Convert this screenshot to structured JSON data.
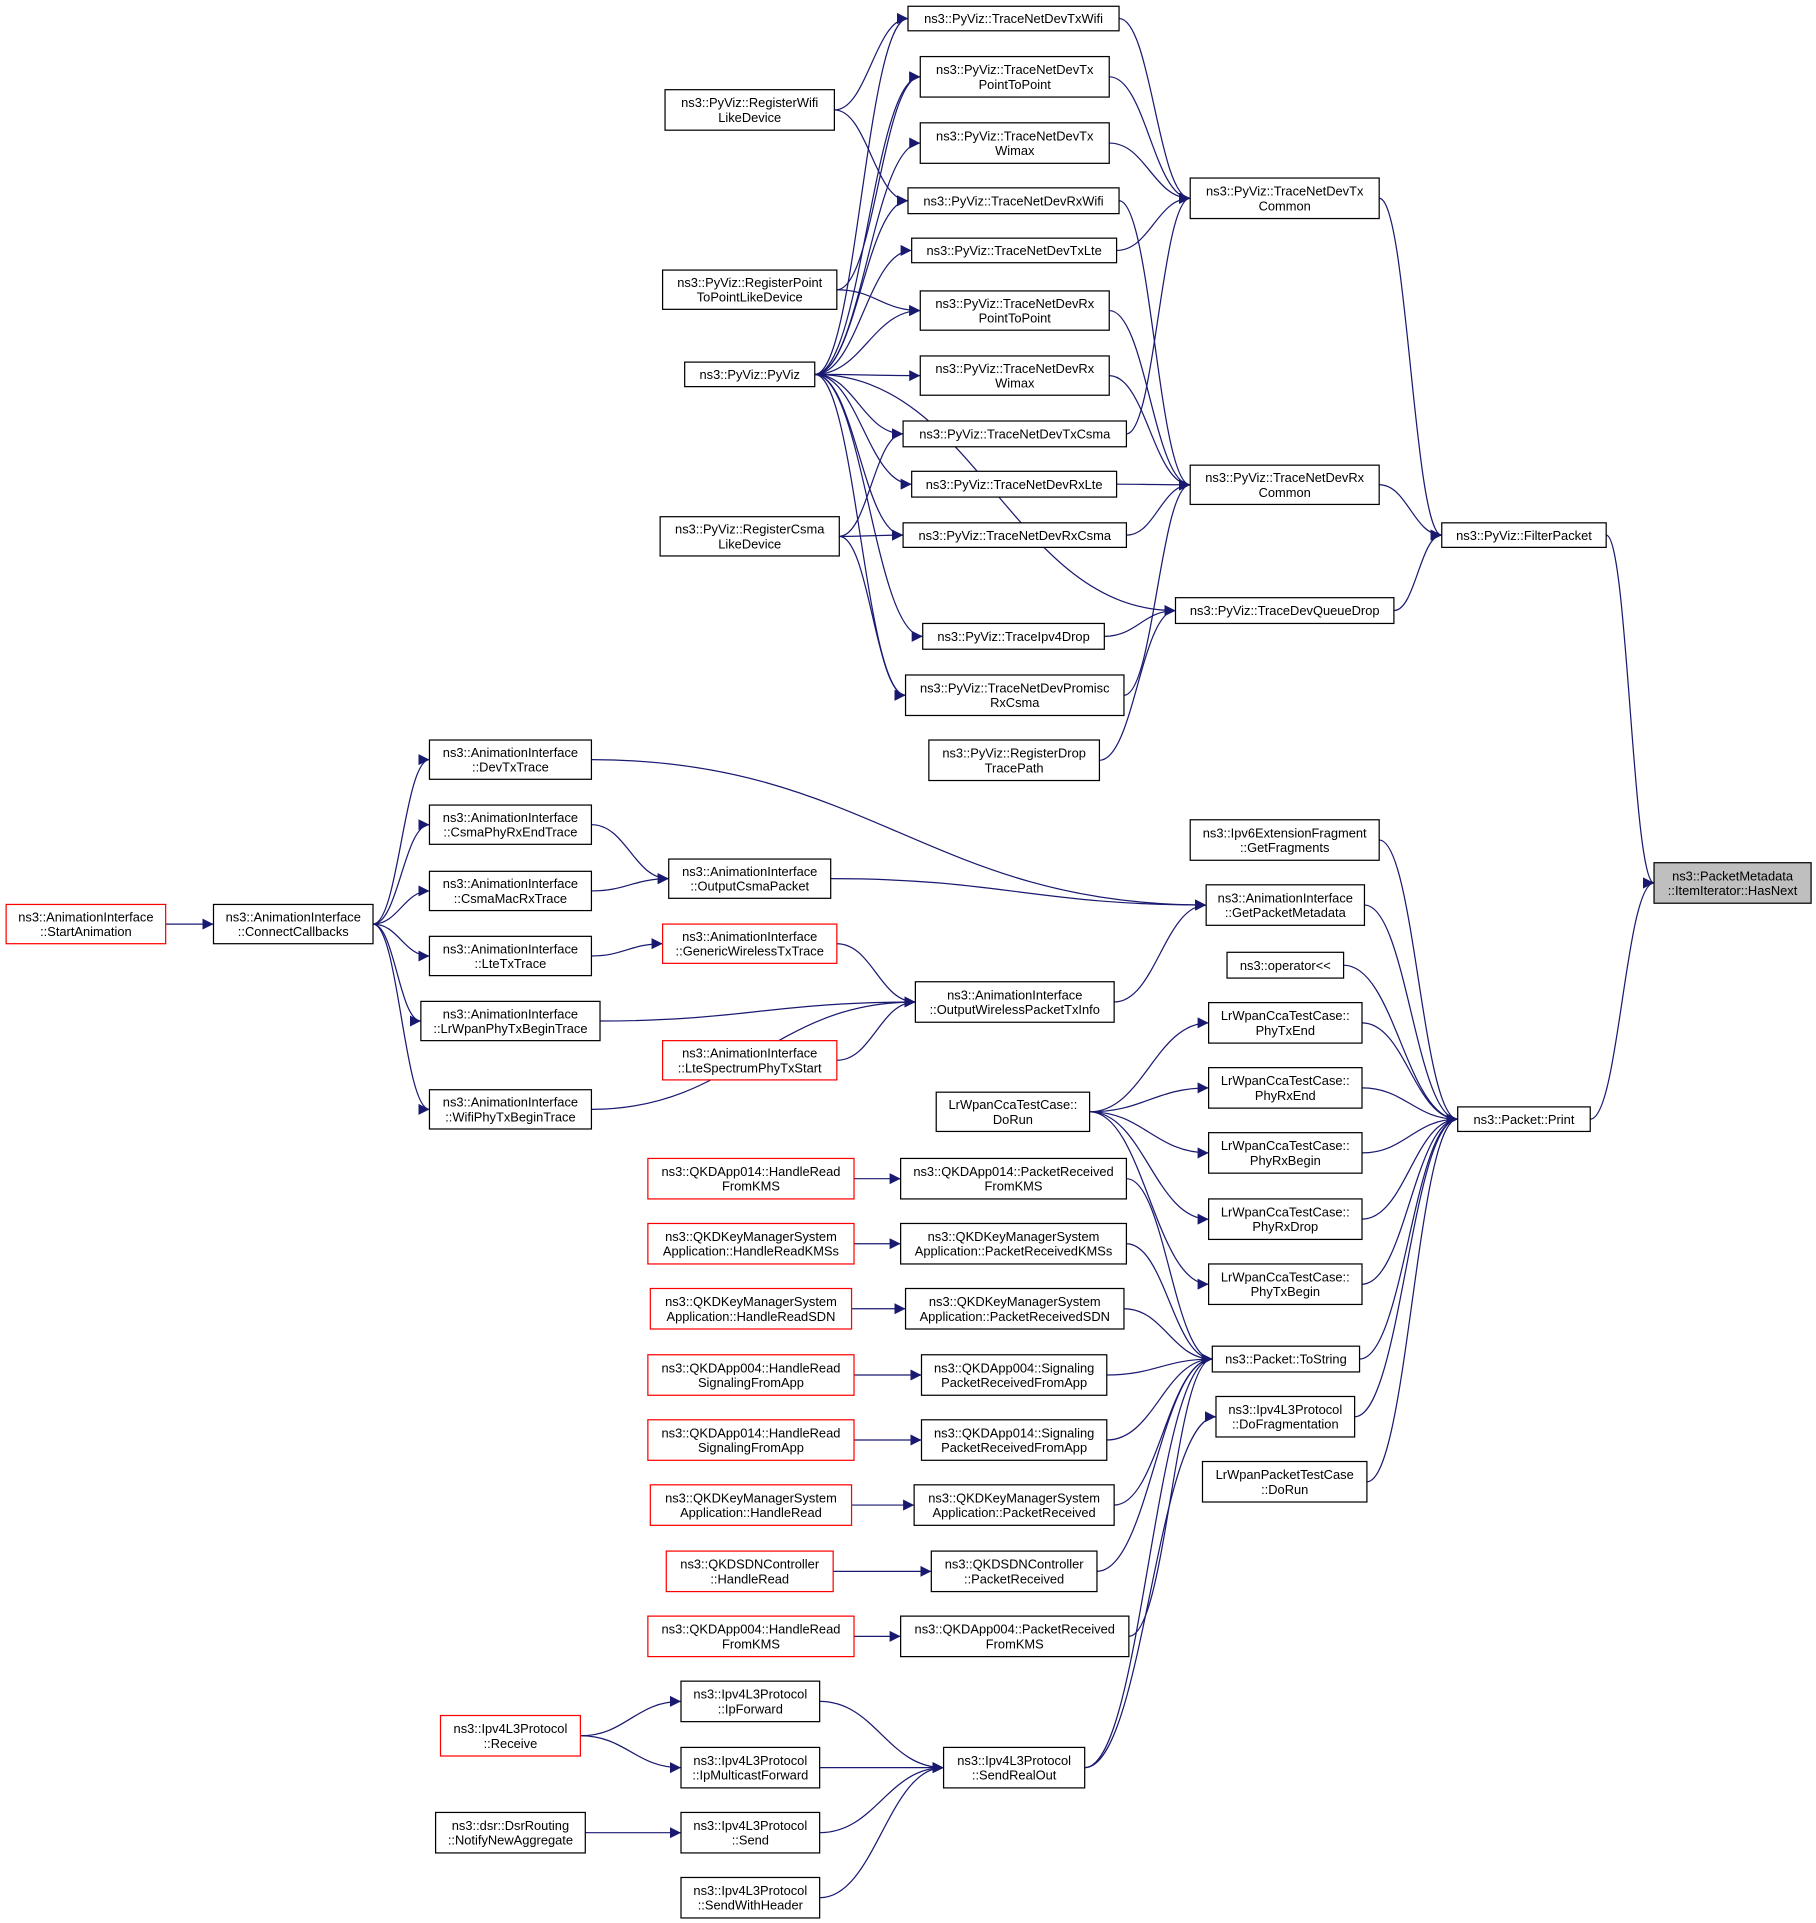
{
  "graph": {
    "edge_color": "#191970",
    "border_color_normal": "#000000",
    "border_color_unresolved": "#ff0000",
    "highlight_fill": "#bfbfbf",
    "nodes": [
      {
        "id": "txwifi",
        "lines": [
          "ns3::PyViz::TraceNetDevTxWifi"
        ],
        "style": "normal"
      },
      {
        "id": "txp2p",
        "lines": [
          "ns3::PyViz::TraceNetDevTx",
          "PointToPoint"
        ],
        "style": "normal"
      },
      {
        "id": "regwifi",
        "lines": [
          "ns3::PyViz::RegisterWifi",
          "LikeDevice"
        ],
        "style": "normal"
      },
      {
        "id": "txwimax",
        "lines": [
          "ns3::PyViz::TraceNetDevTx",
          "Wimax"
        ],
        "style": "normal"
      },
      {
        "id": "txcommon",
        "lines": [
          "ns3::PyViz::TraceNetDevTx",
          "Common"
        ],
        "style": "normal"
      },
      {
        "id": "rxwifi",
        "lines": [
          "ns3::PyViz::TraceNetDevRxWifi"
        ],
        "style": "normal"
      },
      {
        "id": "txlte",
        "lines": [
          "ns3::PyViz::TraceNetDevTxLte"
        ],
        "style": "normal"
      },
      {
        "id": "regp2p",
        "lines": [
          "ns3::PyViz::RegisterPoint",
          "ToPointLikeDevice"
        ],
        "style": "normal"
      },
      {
        "id": "rxp2p",
        "lines": [
          "ns3::PyViz::TraceNetDevRx",
          "PointToPoint"
        ],
        "style": "normal"
      },
      {
        "id": "pyviz",
        "lines": [
          "ns3::PyViz::PyViz"
        ],
        "style": "normal"
      },
      {
        "id": "rxwimax",
        "lines": [
          "ns3::PyViz::TraceNetDevRx",
          "Wimax"
        ],
        "style": "normal"
      },
      {
        "id": "txcsma",
        "lines": [
          "ns3::PyViz::TraceNetDevTxCsma"
        ],
        "style": "normal"
      },
      {
        "id": "rxlte",
        "lines": [
          "ns3::PyViz::TraceNetDevRxLte"
        ],
        "style": "normal"
      },
      {
        "id": "rxcommon",
        "lines": [
          "ns3::PyViz::TraceNetDevRx",
          "Common"
        ],
        "style": "normal"
      },
      {
        "id": "regcsma",
        "lines": [
          "ns3::PyViz::RegisterCsma",
          "LikeDevice"
        ],
        "style": "normal"
      },
      {
        "id": "rxcsma",
        "lines": [
          "ns3::PyViz::TraceNetDevRxCsma"
        ],
        "style": "normal"
      },
      {
        "id": "filter",
        "lines": [
          "ns3::PyViz::FilterPacket"
        ],
        "style": "normal"
      },
      {
        "id": "queuedrop",
        "lines": [
          "ns3::PyViz::TraceDevQueueDrop"
        ],
        "style": "normal"
      },
      {
        "id": "ipv4drop",
        "lines": [
          "ns3::PyViz::TraceIpv4Drop"
        ],
        "style": "normal"
      },
      {
        "id": "promisc",
        "lines": [
          "ns3::PyViz::TraceNetDevPromisc",
          "RxCsma"
        ],
        "style": "normal"
      },
      {
        "id": "regdrop",
        "lines": [
          "ns3::PyViz::RegisterDrop",
          "TracePath"
        ],
        "style": "normal"
      },
      {
        "id": "startanim",
        "lines": [
          "ns3::AnimationInterface",
          "::StartAnimation"
        ],
        "style": "red"
      },
      {
        "id": "connect",
        "lines": [
          "ns3::AnimationInterface",
          "::ConnectCallbacks"
        ],
        "style": "normal"
      },
      {
        "id": "devtx",
        "lines": [
          "ns3::AnimationInterface",
          "::DevTxTrace"
        ],
        "style": "normal"
      },
      {
        "id": "csmaphy",
        "lines": [
          "ns3::AnimationInterface",
          "::CsmaPhyRxEndTrace"
        ],
        "style": "normal"
      },
      {
        "id": "csmamac",
        "lines": [
          "ns3::AnimationInterface",
          "::CsmaMacRxTrace"
        ],
        "style": "normal"
      },
      {
        "id": "ltetx",
        "lines": [
          "ns3::AnimationInterface",
          "::LteTxTrace"
        ],
        "style": "normal"
      },
      {
        "id": "lrwpanphy",
        "lines": [
          "ns3::AnimationInterface",
          "::LrWpanPhyTxBeginTrace"
        ],
        "style": "normal"
      },
      {
        "id": "wifiphy",
        "lines": [
          "ns3::AnimationInterface",
          "::WifiPhyTxBeginTrace"
        ],
        "style": "normal"
      },
      {
        "id": "outcsma",
        "lines": [
          "ns3::AnimationInterface",
          "::OutputCsmaPacket"
        ],
        "style": "normal"
      },
      {
        "id": "genwireless",
        "lines": [
          "ns3::AnimationInterface",
          "::GenericWirelessTxTrace"
        ],
        "style": "red"
      },
      {
        "id": "outwireless",
        "lines": [
          "ns3::AnimationInterface",
          "::OutputWirelessPacketTxInfo"
        ],
        "style": "normal"
      },
      {
        "id": "ltespectrum",
        "lines": [
          "ns3::AnimationInterface",
          "::LteSpectrumPhyTxStart"
        ],
        "style": "red"
      },
      {
        "id": "ipv6frag",
        "lines": [
          "ns3::Ipv6ExtensionFragment",
          "::GetFragments"
        ],
        "style": "normal"
      },
      {
        "id": "getmeta",
        "lines": [
          "ns3::AnimationInterface",
          "::GetPacketMetadata"
        ],
        "style": "normal"
      },
      {
        "id": "operator",
        "lines": [
          "ns3::operator<<"
        ],
        "style": "normal"
      },
      {
        "id": "phytxend",
        "lines": [
          "LrWpanCcaTestCase::",
          "PhyTxEnd"
        ],
        "style": "normal"
      },
      {
        "id": "ccadorun",
        "lines": [
          "LrWpanCcaTestCase::",
          "DoRun"
        ],
        "style": "normal"
      },
      {
        "id": "phyrxend",
        "lines": [
          "LrWpanCcaTestCase::",
          "PhyRxEnd"
        ],
        "style": "normal"
      },
      {
        "id": "phyrxbegin",
        "lines": [
          "LrWpanCcaTestCase::",
          "PhyRxBegin"
        ],
        "style": "normal"
      },
      {
        "id": "phyrxdrop",
        "lines": [
          "LrWpanCcaTestCase::",
          "PhyRxDrop"
        ],
        "style": "normal"
      },
      {
        "id": "phytxbegin",
        "lines": [
          "LrWpanCcaTestCase::",
          "PhyTxBegin"
        ],
        "style": "normal"
      },
      {
        "id": "print",
        "lines": [
          "ns3::Packet::Print"
        ],
        "style": "normal"
      },
      {
        "id": "hasnext",
        "lines": [
          "ns3::PacketMetadata",
          "::ItemIterator::HasNext"
        ],
        "style": "highlight"
      },
      {
        "id": "tostring",
        "lines": [
          "ns3::Packet::ToString"
        ],
        "style": "normal"
      },
      {
        "id": "dofrag",
        "lines": [
          "ns3::Ipv4L3Protocol",
          "::DoFragmentation"
        ],
        "style": "normal"
      },
      {
        "id": "pktdorun",
        "lines": [
          "LrWpanPacketTestCase",
          "::DoRun"
        ],
        "style": "normal"
      },
      {
        "id": "q014hrkms",
        "lines": [
          "ns3::QKDApp014::HandleRead",
          "FromKMS"
        ],
        "style": "red"
      },
      {
        "id": "q014prkms",
        "lines": [
          "ns3::QKDApp014::PacketReceived",
          "FromKMS"
        ],
        "style": "normal"
      },
      {
        "id": "kmshrkmss",
        "lines": [
          "ns3::QKDKeyManagerSystem",
          "Application::HandleReadKMSs"
        ],
        "style": "red"
      },
      {
        "id": "kmsprkmss",
        "lines": [
          "ns3::QKDKeyManagerSystem",
          "Application::PacketReceivedKMSs"
        ],
        "style": "normal"
      },
      {
        "id": "kmshrsdn",
        "lines": [
          "ns3::QKDKeyManagerSystem",
          "Application::HandleReadSDN"
        ],
        "style": "red"
      },
      {
        "id": "kmsprsdn",
        "lines": [
          "ns3::QKDKeyManagerSystem",
          "Application::PacketReceivedSDN"
        ],
        "style": "normal"
      },
      {
        "id": "q004hrsig",
        "lines": [
          "ns3::QKDApp004::HandleRead",
          "SignalingFromApp"
        ],
        "style": "red"
      },
      {
        "id": "q004prsig",
        "lines": [
          "ns3::QKDApp004::Signaling",
          "PacketReceivedFromApp"
        ],
        "style": "normal"
      },
      {
        "id": "q014hrsig",
        "lines": [
          "ns3::QKDApp014::HandleRead",
          "SignalingFromApp"
        ],
        "style": "red"
      },
      {
        "id": "q014prsig",
        "lines": [
          "ns3::QKDApp014::Signaling",
          "PacketReceivedFromApp"
        ],
        "style": "normal"
      },
      {
        "id": "kmshr",
        "lines": [
          "ns3::QKDKeyManagerSystem",
          "Application::HandleRead"
        ],
        "style": "red"
      },
      {
        "id": "kmspr",
        "lines": [
          "ns3::QKDKeyManagerSystem",
          "Application::PacketReceived"
        ],
        "style": "normal"
      },
      {
        "id": "sdnhr",
        "lines": [
          "ns3::QKDSDNController",
          "::HandleRead"
        ],
        "style": "red"
      },
      {
        "id": "sdnpr",
        "lines": [
          "ns3::QKDSDNController",
          "::PacketReceived"
        ],
        "style": "normal"
      },
      {
        "id": "q004hrkms",
        "lines": [
          "ns3::QKDApp004::HandleRead",
          "FromKMS"
        ],
        "style": "red"
      },
      {
        "id": "q004prkms",
        "lines": [
          "ns3::QKDApp004::PacketReceived",
          "FromKMS"
        ],
        "style": "normal"
      },
      {
        "id": "ipforward",
        "lines": [
          "ns3::Ipv4L3Protocol",
          "::IpForward"
        ],
        "style": "normal"
      },
      {
        "id": "receive",
        "lines": [
          "ns3::Ipv4L3Protocol",
          "::Receive"
        ],
        "style": "red"
      },
      {
        "id": "ipmcast",
        "lines": [
          "ns3::Ipv4L3Protocol",
          "::IpMulticastForward"
        ],
        "style": "normal"
      },
      {
        "id": "sendrealout",
        "lines": [
          "ns3::Ipv4L3Protocol",
          "::SendRealOut"
        ],
        "style": "normal"
      },
      {
        "id": "dsr",
        "lines": [
          "ns3::dsr::DsrRouting",
          "::NotifyNewAggregate"
        ],
        "style": "normal"
      },
      {
        "id": "send",
        "lines": [
          "ns3::Ipv4L3Protocol",
          "::Send"
        ],
        "style": "normal"
      },
      {
        "id": "sendhdr",
        "lines": [
          "ns3::Ipv4L3Protocol",
          "::SendWithHeader"
        ],
        "style": "normal"
      }
    ],
    "edges": [
      [
        "pyviz",
        "txwifi"
      ],
      [
        "pyviz",
        "txp2p"
      ],
      [
        "pyviz",
        "txwimax"
      ],
      [
        "pyviz",
        "rxwifi"
      ],
      [
        "pyviz",
        "txlte"
      ],
      [
        "pyviz",
        "rxp2p"
      ],
      [
        "pyviz",
        "rxwimax"
      ],
      [
        "pyviz",
        "txcsma"
      ],
      [
        "pyviz",
        "rxlte"
      ],
      [
        "pyviz",
        "rxcsma"
      ],
      [
        "pyviz",
        "queuedrop"
      ],
      [
        "pyviz",
        "ipv4drop"
      ],
      [
        "pyviz",
        "promisc"
      ],
      [
        "regwifi",
        "txwifi"
      ],
      [
        "regwifi",
        "rxwifi"
      ],
      [
        "regp2p",
        "txp2p"
      ],
      [
        "regp2p",
        "rxp2p"
      ],
      [
        "regcsma",
        "txcsma"
      ],
      [
        "regcsma",
        "rxcsma"
      ],
      [
        "regcsma",
        "promisc"
      ],
      [
        "txwifi",
        "txcommon"
      ],
      [
        "txp2p",
        "txcommon"
      ],
      [
        "txwimax",
        "txcommon"
      ],
      [
        "txlte",
        "txcommon"
      ],
      [
        "txcsma",
        "txcommon"
      ],
      [
        "rxwifi",
        "rxcommon"
      ],
      [
        "rxp2p",
        "rxcommon"
      ],
      [
        "rxwimax",
        "rxcommon"
      ],
      [
        "rxlte",
        "rxcommon"
      ],
      [
        "rxcsma",
        "rxcommon"
      ],
      [
        "promisc",
        "rxcommon"
      ],
      [
        "txcommon",
        "filter"
      ],
      [
        "rxcommon",
        "filter"
      ],
      [
        "queuedrop",
        "filter"
      ],
      [
        "ipv4drop",
        "queuedrop"
      ],
      [
        "regdrop",
        "queuedrop"
      ],
      [
        "filter",
        "hasnext"
      ],
      [
        "print",
        "hasnext"
      ],
      [
        "startanim",
        "connect"
      ],
      [
        "connect",
        "devtx"
      ],
      [
        "connect",
        "csmaphy"
      ],
      [
        "connect",
        "csmamac"
      ],
      [
        "connect",
        "ltetx"
      ],
      [
        "connect",
        "lrwpanphy"
      ],
      [
        "connect",
        "wifiphy"
      ],
      [
        "csmaphy",
        "outcsma"
      ],
      [
        "csmamac",
        "outcsma"
      ],
      [
        "ltetx",
        "genwireless"
      ],
      [
        "genwireless",
        "outwireless"
      ],
      [
        "lrwpanphy",
        "outwireless"
      ],
      [
        "ltespectrum",
        "outwireless"
      ],
      [
        "wifiphy",
        "outwireless"
      ],
      [
        "devtx",
        "getmeta"
      ],
      [
        "outcsma",
        "getmeta"
      ],
      [
        "outwireless",
        "getmeta"
      ],
      [
        "getmeta",
        "print"
      ],
      [
        "ipv6frag",
        "print"
      ],
      [
        "operator",
        "print"
      ],
      [
        "phytxend",
        "print"
      ],
      [
        "phyrxend",
        "print"
      ],
      [
        "phyrxbegin",
        "print"
      ],
      [
        "phyrxdrop",
        "print"
      ],
      [
        "phytxbegin",
        "print"
      ],
      [
        "ccadorun",
        "phytxend"
      ],
      [
        "ccadorun",
        "phyrxend"
      ],
      [
        "ccadorun",
        "phyrxbegin"
      ],
      [
        "ccadorun",
        "phyrxdrop"
      ],
      [
        "ccadorun",
        "phytxbegin"
      ],
      [
        "tostring",
        "print"
      ],
      [
        "dofrag",
        "print"
      ],
      [
        "pktdorun",
        "print"
      ],
      [
        "q014hrkms",
        "q014prkms"
      ],
      [
        "kmshrkmss",
        "kmsprkmss"
      ],
      [
        "kmshrsdn",
        "kmsprsdn"
      ],
      [
        "q004hrsig",
        "q004prsig"
      ],
      [
        "q014hrsig",
        "q014prsig"
      ],
      [
        "kmshr",
        "kmspr"
      ],
      [
        "sdnhr",
        "sdnpr"
      ],
      [
        "q004hrkms",
        "q004prkms"
      ],
      [
        "q014prkms",
        "tostring"
      ],
      [
        "kmsprkmss",
        "tostring"
      ],
      [
        "kmsprsdn",
        "tostring"
      ],
      [
        "q004prsig",
        "tostring"
      ],
      [
        "q014prsig",
        "tostring"
      ],
      [
        "kmspr",
        "tostring"
      ],
      [
        "sdnpr",
        "tostring"
      ],
      [
        "q004prkms",
        "tostring"
      ],
      [
        "sendrealout",
        "tostring"
      ],
      [
        "sendrealout",
        "dofrag"
      ],
      [
        "receive",
        "ipforward"
      ],
      [
        "receive",
        "ipmcast"
      ],
      [
        "ipforward",
        "sendrealout"
      ],
      [
        "ipmcast",
        "sendrealout"
      ],
      [
        "send",
        "sendrealout"
      ],
      [
        "sendhdr",
        "sendrealout"
      ],
      [
        "dsr",
        "send"
      ]
    ]
  }
}
